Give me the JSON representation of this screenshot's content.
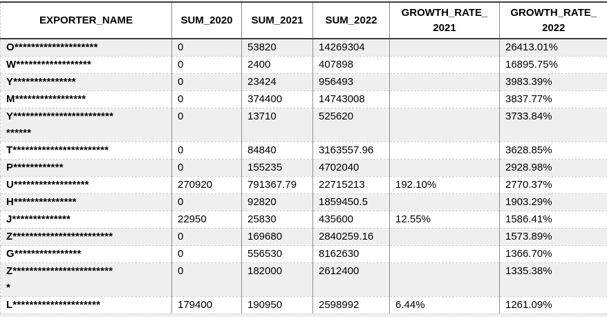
{
  "table": {
    "columns": [
      {
        "key": "exporter",
        "label": "EXPORTER_NAME"
      },
      {
        "key": "sum2020",
        "label": "SUM_2020"
      },
      {
        "key": "sum2021",
        "label": "SUM_2021"
      },
      {
        "key": "sum2022",
        "label": "SUM_2022"
      },
      {
        "key": "gr2021",
        "label": "GROWTH_RATE_\n2021"
      },
      {
        "key": "gr2022",
        "label": "GROWTH_RATE_\n2022"
      }
    ],
    "rows": [
      {
        "exporter": "O********************",
        "sum2020": "0",
        "sum2021": "53820",
        "sum2022": "14269304",
        "gr2021": "",
        "gr2022": "26413.01%"
      },
      {
        "exporter": "W******************",
        "sum2020": "0",
        "sum2021": "2400",
        "sum2022": "407898",
        "gr2021": "",
        "gr2022": "16895.75%"
      },
      {
        "exporter": "Y***************",
        "sum2020": "0",
        "sum2021": "23424",
        "sum2022": "956493",
        "gr2021": "",
        "gr2022": "3983.39%"
      },
      {
        "exporter": "M*****************",
        "sum2020": "0",
        "sum2021": "374400",
        "sum2022": "14743008",
        "gr2021": "",
        "gr2022": "3837.77%"
      },
      {
        "exporter": "Y************************\n******",
        "sum2020": "0",
        "sum2021": "13710",
        "sum2022": "525620",
        "gr2021": "",
        "gr2022": "3733.84%"
      },
      {
        "exporter": "T***********************",
        "sum2020": "0",
        "sum2021": "84840",
        "sum2022": "3163557.96",
        "gr2021": "",
        "gr2022": "3628.85%"
      },
      {
        "exporter": "P************",
        "sum2020": "0",
        "sum2021": "155235",
        "sum2022": "4702040",
        "gr2021": "",
        "gr2022": "2928.98%"
      },
      {
        "exporter": "U******************",
        "sum2020": "270920",
        "sum2021": "791367.79",
        "sum2022": "22715213",
        "gr2021": "192.10%",
        "gr2022": "2770.37%"
      },
      {
        "exporter": "H***************",
        "sum2020": "0",
        "sum2021": "92820",
        "sum2022": "1859450.5",
        "gr2021": "",
        "gr2022": "1903.29%"
      },
      {
        "exporter": "J**************",
        "sum2020": "22950",
        "sum2021": "25830",
        "sum2022": "435600",
        "gr2021": "12.55%",
        "gr2022": "1586.41%"
      },
      {
        "exporter": "Z************************",
        "sum2020": "0",
        "sum2021": "169680",
        "sum2022": "2840259.16",
        "gr2021": "",
        "gr2022": "1573.89%"
      },
      {
        "exporter": "G****************",
        "sum2020": "0",
        "sum2021": "556530",
        "sum2022": "8162630",
        "gr2021": "",
        "gr2022": "1366.70%"
      },
      {
        "exporter": "Z************************\n*",
        "sum2020": "0",
        "sum2021": "182000",
        "sum2022": "2612400",
        "gr2021": "",
        "gr2022": "1335.38%"
      },
      {
        "exporter": "L*********************",
        "sum2020": "179400",
        "sum2021": "190950",
        "sum2022": "2598992",
        "gr2021": "6.44%",
        "gr2022": "1261.09%"
      }
    ]
  },
  "colors": {
    "row_stripe": "#efefef",
    "grid_vertical": "#8a8a8a",
    "grid_horizontal_dashed": "#cfcfcf",
    "header_border": "#3b3b3b",
    "text": "#000000"
  }
}
